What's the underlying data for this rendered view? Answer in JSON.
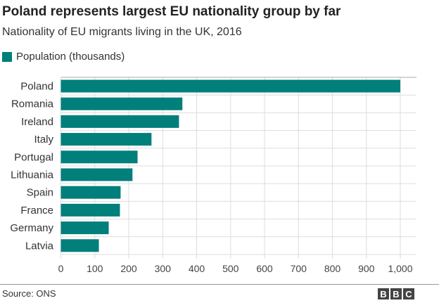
{
  "header": {
    "title": "Poland represents largest EU nationality group by far",
    "subtitle": "Nationality of EU migrants living in the UK, 2016"
  },
  "footer": {
    "source": "Source: ONS",
    "logo": "BBC"
  },
  "chart_data": {
    "type": "bar",
    "orientation": "horizontal",
    "categories": [
      "Poland",
      "Romania",
      "Ireland",
      "Italy",
      "Portugal",
      "Lithuania",
      "Spain",
      "France",
      "Germany",
      "Latvia"
    ],
    "series": [
      {
        "name": "Population (thousands)",
        "values": [
          1000,
          358,
          348,
          267,
          226,
          211,
          176,
          174,
          141,
          112
        ],
        "color": "#007f7b"
      }
    ],
    "xlim": [
      0,
      1000
    ],
    "xticks": [
      "0",
      "100",
      "200",
      "300",
      "400",
      "500",
      "600",
      "700",
      "800",
      "900",
      "1,000"
    ],
    "grid": true,
    "legend": "top-left"
  }
}
